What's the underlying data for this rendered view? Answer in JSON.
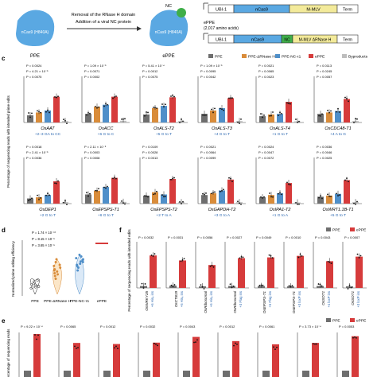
{
  "schematic": {
    "ppe_label": "PPE",
    "ppe_protein": "nCas9 (H840A)",
    "arrow_text_1": "Removal of the RNase H domain",
    "arrow_text_2": "Addition of a viral NC protein",
    "nc_label": "NC",
    "eppe_protein": "nCas9 (H840A)",
    "eppe_label": "ePPE",
    "construct_ppe": {
      "ubi": "UBI-1",
      "cas": "nCas9",
      "rt": "M-MLV",
      "term": "Term"
    },
    "construct_eppe": {
      "title": "ePPE",
      "subtitle": "(2,017 amino acids)",
      "ubi": "UBI-1",
      "cas": "nCas9",
      "nc": "NC",
      "rt": "M-MLV ΔRNase H",
      "term": "Term"
    }
  },
  "panel_c": {
    "letter": "c",
    "ylabel": "Percentage of sequencing reads with intended prime edits",
    "legend": [
      {
        "name": "PPE",
        "color": "#6e6e6e"
      },
      {
        "name": "PPE-ΔRNase H",
        "color": "#d98c3a"
      },
      {
        "name": "PPE-NC-τ1",
        "color": "#4f8fc9"
      },
      {
        "name": "ePPE",
        "color": "#d63b3b"
      },
      {
        "name": "Byproducts",
        "color": "#bdbdbd"
      }
    ],
    "row1": [
      {
        "gene": "OsAAT",
        "edit": "+2–3 GA to CC",
        "p": [
          "P = 0.0024",
          "P = 4.21 × 10⁻⁵",
          "P = 0.0075"
        ]
      },
      {
        "gene": "OsACC",
        "edit": "+6 G to C",
        "p": [
          "P = 1.09 × 10⁻⁵",
          "P = 0.0071",
          "P = 0.0002"
        ]
      },
      {
        "gene": "OsALS-T2",
        "edit": "+5 G to T",
        "p": [
          "P = 5.41 × 10⁻⁴",
          "P = 0.0012",
          "P = 0.0075"
        ]
      },
      {
        "gene": "OsALS-T3",
        "edit": "+4 G to T",
        "p": [
          "P = 1.09 × 10⁻⁵",
          "P = 0.0095",
          "P = 0.0042"
        ]
      },
      {
        "gene": "OsALS-T4",
        "edit": "+1 G to T",
        "p": [
          "P = 0.0021",
          "P = 0.0065",
          "P = 0.0023"
        ]
      },
      {
        "gene": "OsCDC48-T1",
        "edit": "+4 A to G",
        "p": [
          "P = 0.0113",
          "P = 0.0245",
          "P = 0.0057"
        ]
      }
    ],
    "row2": [
      {
        "gene": "OsDEP1",
        "edit": "+2 G to T",
        "p": [
          "P = 0.0018",
          "P = 2.41 × 10⁻⁵",
          "P = 0.0036"
        ]
      },
      {
        "gene": "OsEPSPS-T1",
        "edit": "+6 G to T",
        "p": [
          "P = 2.11 × 10⁻⁵",
          "P = 0.0003",
          "P = 0.0008"
        ]
      },
      {
        "gene": "OsEPSPS-T2",
        "edit": "+2 T to A",
        "p": [
          "P = 0.0109",
          "P = 0.0028",
          "P = 0.0013"
        ]
      },
      {
        "gene": "OsGAPDH-T2",
        "edit": "+3 G to A",
        "p": [
          "P = 0.0021",
          "P = 0.0064",
          "P = 0.0099"
        ]
      },
      {
        "gene": "OsIPA1-T2",
        "edit": "+1 G to A",
        "p": [
          "P = 0.0024",
          "P = 0.0047",
          "P = 0.0072"
        ]
      },
      {
        "gene": "OsWRT1.1B-T1",
        "edit": "+5 G to T",
        "p": [
          "P = 0.0036",
          "P = 0.0046",
          "P = 0.0025"
        ]
      }
    ]
  },
  "panel_d": {
    "letter": "d",
    "ylabel": "Normalized prime editing efficiency",
    "p": [
      "P = 1.74 × 10⁻¹⁰",
      "P = 8.15 × 10⁻⁵",
      "P = 3.65 × 10⁻⁵"
    ],
    "categories": [
      "PPE",
      "PPE-ΔRNase H",
      "PPE-NC-τ1",
      "ePPE"
    ]
  },
  "panel_f": {
    "letter": "f",
    "ylabel": "Percentage of sequencing reads with intended edits",
    "legend": [
      {
        "name": "PPE",
        "color": "#6e6e6e"
      },
      {
        "name": "ePPE",
        "color": "#d63b3b"
      }
    ],
    "targets": [
      {
        "gene": "OsWRKY35",
        "edit": "+6 His₆ ins",
        "p": "P = 0.0032"
      },
      {
        "gene": "OsCTB19",
        "edit": "+5 His₆ ins",
        "p": "P = 0.0031"
      },
      {
        "gene": "OsRibosomal",
        "edit": "+6 His₆ ins",
        "p": "P = 0.0056"
      },
      {
        "gene": "OsRibosomal",
        "edit": "+3 Flag ins",
        "p": "P = 0.0027"
      },
      {
        "gene": "OsEPSPS-T1",
        "edit": "+6 Flag ins",
        "p": "P = 0.0049"
      },
      {
        "gene": "OsEPSPS-T1",
        "edit": "+3 loxP ins",
        "p": "P = 0.0010"
      },
      {
        "gene": "OsSOT1",
        "edit": "+4 loxP ins",
        "p": "P = 0.0043"
      },
      {
        "gene": "OsSOT1",
        "edit": "+3 loxP ins",
        "p": "P = 0.0007"
      }
    ]
  },
  "panel_e": {
    "letter": "e",
    "ylabel": "Percentage of sequencing reads",
    "legend": [
      {
        "name": "PPE",
        "color": "#6e6e6e"
      },
      {
        "name": "ePPE",
        "color": "#d63b3b"
      }
    ],
    "p": [
      "P = 9.22 × 10⁻⁴",
      "P = 0.0065",
      "P = 0.0012",
      "P = 0.0032",
      "P = 0.0043",
      "P = 0.0012",
      "P = 0.0061",
      "P = 3.73 × 10⁻⁴",
      "P = 0.0053"
    ]
  },
  "chart_data": [
    {
      "type": "bar",
      "title": "",
      "ylabel": "Percentage of sequencing reads with intended prime edits",
      "categories": [
        "OsAAT",
        "OsACC",
        "OsALS-T2",
        "OsALS-T3",
        "OsALS-T4",
        "OsCDC48-T1",
        "OsDEP1",
        "OsEPSPS-T1",
        "OsEPSPS-T2",
        "OsGAPDH-T2",
        "OsIPA1-T2",
        "OsWRT1.1B-T1"
      ],
      "series": [
        {
          "name": "PPE",
          "values": [
            0.25,
            0.3,
            0.28,
            0.3,
            0.22,
            0.3,
            0.18,
            0.32,
            0.28,
            0.3,
            0.22,
            0.24
          ]
        },
        {
          "name": "PPE-ΔRNase H",
          "values": [
            0.35,
            0.55,
            0.5,
            0.42,
            0.28,
            0.35,
            0.22,
            0.45,
            0.4,
            0.36,
            0.3,
            0.28
          ]
        },
        {
          "name": "PPE-NC-τ1",
          "values": [
            0.42,
            0.62,
            0.58,
            0.5,
            0.3,
            0.4,
            0.3,
            0.58,
            0.32,
            0.46,
            0.36,
            0.34
          ]
        },
        {
          "name": "ePPE",
          "values": [
            0.9,
            0.9,
            0.88,
            0.85,
            0.72,
            0.82,
            0.78,
            0.9,
            0.86,
            0.84,
            0.72,
            0.82
          ]
        },
        {
          "name": "Byproducts",
          "values": [
            0.05,
            0.06,
            0.05,
            0.05,
            0.04,
            0.05,
            0.05,
            0.06,
            0.05,
            0.05,
            0.04,
            0.05
          ]
        }
      ]
    },
    {
      "type": "scatter",
      "ylabel": "Normalized prime editing efficiency",
      "categories": [
        "PPE",
        "PPE-ΔRNase H",
        "PPE-NC-τ1",
        "ePPE"
      ],
      "series": [
        {
          "name": "PPE",
          "values": [
            0.08,
            0.12,
            0.15,
            0.1,
            0.2,
            0.18,
            0.13,
            0.1,
            0.16,
            0.14,
            0.11,
            0.22
          ]
        },
        {
          "name": "PPE-ΔRNase H",
          "values": [
            0.25,
            0.4,
            0.5,
            0.33,
            0.6,
            0.45,
            0.38,
            0.3,
            0.55,
            0.42,
            0.35,
            0.48
          ]
        },
        {
          "name": "PPE-NC-τ1",
          "values": [
            0.4,
            0.55,
            0.62,
            0.5,
            0.68,
            0.58,
            0.45,
            0.52,
            0.65,
            0.6,
            0.48,
            0.56
          ]
        },
        {
          "name": "ePPE",
          "values": [
            1,
            1,
            1,
            1,
            1,
            1,
            1,
            1,
            1,
            1,
            1,
            1
          ]
        }
      ]
    },
    {
      "type": "bar",
      "ylabel": "Percentage of sequencing reads with intended edits",
      "categories": [
        "OsWRKY35",
        "OsCTB19",
        "OsRibosomal",
        "OsRibosomal",
        "OsEPSPS-T1",
        "OsEPSPS-T1",
        "OsSOT1",
        "OsSOT1"
      ],
      "series": [
        {
          "name": "PPE",
          "values": [
            0.05,
            0.06,
            0.04,
            0.05,
            0.05,
            0.04,
            0.05,
            0.04
          ]
        },
        {
          "name": "ePPE",
          "values": [
            0.85,
            0.72,
            0.6,
            0.78,
            0.8,
            0.84,
            0.7,
            0.82
          ]
        }
      ]
    }
  ]
}
